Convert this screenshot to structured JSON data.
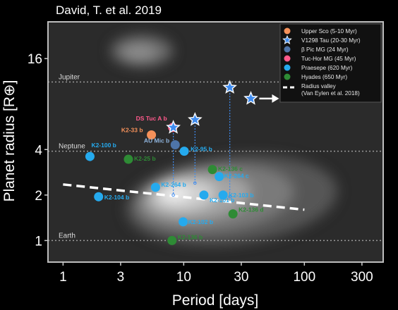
{
  "citation": "David, T. et al. 2019",
  "chart_data": {
    "type": "scatter",
    "xlabel": "Period [days]",
    "ylabel": "Planet radius [R⊕]",
    "xscale": "log",
    "yscale": "log",
    "xlim": [
      0.75,
      450
    ],
    "ylim": [
      0.72,
      28
    ],
    "xticks": [
      {
        "value": 1,
        "label": "1"
      },
      {
        "value": 3,
        "label": "3"
      },
      {
        "value": 10,
        "label": "10"
      },
      {
        "value": 30,
        "label": "30"
      },
      {
        "value": 100,
        "label": "100"
      },
      {
        "value": 300,
        "label": "300"
      }
    ],
    "yticks": [
      {
        "value": 1,
        "label": "1"
      },
      {
        "value": 2,
        "label": "2"
      },
      {
        "value": 4,
        "label": "4"
      },
      {
        "value": 16,
        "label": "16"
      }
    ],
    "reference_lines": [
      {
        "label": "Jupiter",
        "radius": 11.2
      },
      {
        "label": "Neptune",
        "radius": 3.9
      },
      {
        "label": "Earth",
        "radius": 1.0
      }
    ],
    "radius_valley": {
      "x": [
        1,
        100
      ],
      "y": [
        2.35,
        1.6
      ]
    },
    "legend": {
      "placement": "top-right",
      "entries": [
        {
          "label": "Upper Sco (5-10 Myr)",
          "color": "#f5915a",
          "marker": "circle"
        },
        {
          "label": "V1298 Tau (20-30 Myr)",
          "color": "#3f8cf0",
          "marker": "star"
        },
        {
          "label": "β Pic MG (24 Myr)",
          "color": "#4e74a8",
          "marker": "circle"
        },
        {
          "label": "Tuc-Hor MG (45 Myr)",
          "color": "#ff5a8c",
          "marker": "circle"
        },
        {
          "label": "Praesepe (620 Myr)",
          "color": "#25aaee",
          "marker": "circle"
        },
        {
          "label": "Hyades (650 Myr)",
          "color": "#2e8b35",
          "marker": "circle"
        },
        {
          "label": "Radius valley\n(Van Eylen et al. 2018)",
          "color": "#ffffff",
          "marker": "dashed-line"
        }
      ]
    },
    "points": [
      {
        "label": "K2-33 b",
        "period": 5.4,
        "radius": 5.0,
        "group": "Upper Sco",
        "color": "#f5915a"
      },
      {
        "label": "AU Mic b",
        "period": 8.5,
        "radius": 4.3,
        "group": "β Pic MG",
        "color": "#4e74a8"
      },
      {
        "label": "DS Tuc A b",
        "period": 8.1,
        "radius": 5.6,
        "group": "Tuc-Hor MG",
        "color": "#ff5a8c"
      },
      {
        "label": "",
        "period": 8.2,
        "radius": 5.6,
        "group": "V1298 Tau",
        "color": "#3f8cf0",
        "star": true,
        "min_radius": 2.0
      },
      {
        "label": "",
        "period": 12.4,
        "radius": 6.3,
        "group": "V1298 Tau",
        "color": "#3f8cf0",
        "star": true,
        "min_radius": 2.4
      },
      {
        "label": "",
        "period": 24.1,
        "radius": 10.3,
        "group": "V1298 Tau",
        "color": "#3f8cf0",
        "star": true,
        "min_radius": 1.95
      },
      {
        "label": "",
        "period": 36,
        "radius": 8.7,
        "group": "V1298 Tau",
        "color": "#3f8cf0",
        "star": true,
        "arrow": true
      },
      {
        "label": "K2-100 b",
        "period": 1.67,
        "radius": 3.6,
        "group": "Praesepe",
        "color": "#25aaee"
      },
      {
        "label": "K2-104 b",
        "period": 1.97,
        "radius": 1.95,
        "group": "Praesepe",
        "color": "#25aaee"
      },
      {
        "label": "K2-264 b",
        "period": 5.84,
        "radius": 2.25,
        "group": "Praesepe",
        "color": "#25aaee"
      },
      {
        "label": "K2-95 b",
        "period": 10.1,
        "radius": 3.9,
        "group": "Praesepe",
        "color": "#25aaee"
      },
      {
        "label": "K2-101 b",
        "period": 14.7,
        "radius": 2.0,
        "group": "Praesepe",
        "color": "#25aaee"
      },
      {
        "label": "K2-102 b",
        "period": 9.9,
        "radius": 1.33,
        "group": "Praesepe",
        "color": "#25aaee"
      },
      {
        "label": "K2-103 b",
        "period": 21.2,
        "radius": 2.0,
        "group": "Praesepe",
        "color": "#25aaee"
      },
      {
        "label": "K2-264 c",
        "period": 19.7,
        "radius": 2.65,
        "group": "Praesepe",
        "color": "#25aaee"
      },
      {
        "label": "K2-25 b",
        "period": 3.48,
        "radius": 3.45,
        "group": "Hyades",
        "color": "#2e8b35"
      },
      {
        "label": "K2-136 c",
        "period": 17.3,
        "radius": 2.95,
        "group": "Hyades",
        "color": "#2e8b35"
      },
      {
        "label": "K2-136 b",
        "period": 8.0,
        "radius": 1.0,
        "group": "Hyades",
        "color": "#2e8b35"
      },
      {
        "label": "K2-136 d",
        "period": 25.6,
        "radius": 1.5,
        "group": "Hyades",
        "color": "#2e8b35"
      }
    ]
  }
}
